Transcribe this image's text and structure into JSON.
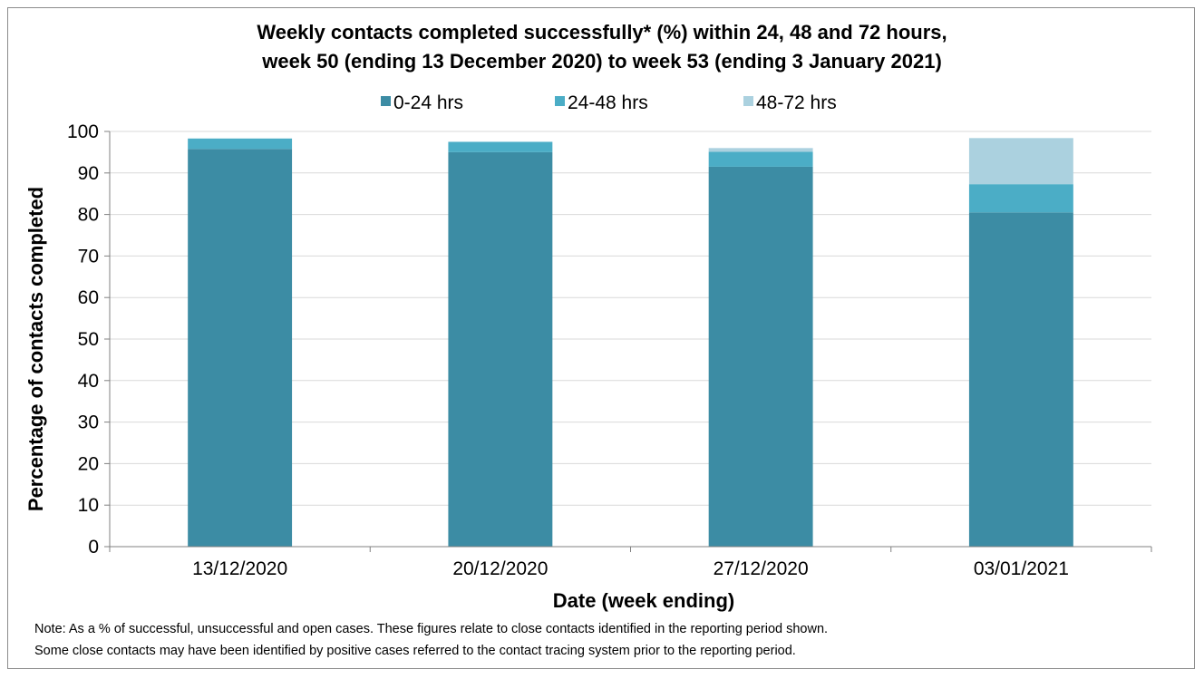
{
  "chart_data": {
    "type": "bar",
    "stacked": true,
    "title": "Weekly contacts completed successfully* (%) within 24, 48 and 72 hours,",
    "subtitle": "week 50 (ending 13 December 2020) to week 53 (ending 3 January 2021)",
    "xlabel": "Date (week ending)",
    "ylabel": "Percentage of contacts completed",
    "ylim": [
      0,
      100
    ],
    "yticks": [
      0,
      10,
      20,
      30,
      40,
      50,
      60,
      70,
      80,
      90,
      100
    ],
    "grid": true,
    "legend_position": "top",
    "categories": [
      "13/12/2020",
      "20/12/2020",
      "27/12/2020",
      "03/01/2021"
    ],
    "series": [
      {
        "name": "0-24 hrs",
        "color": "#3c8ca4",
        "values": [
          95.8,
          95.0,
          91.5,
          80.5
        ]
      },
      {
        "name": "24-48 hrs",
        "color": "#4badc6",
        "values": [
          2.5,
          2.5,
          3.6,
          6.8
        ]
      },
      {
        "name": "48-72 hrs",
        "color": "#abd1df",
        "values": [
          0.0,
          0.0,
          0.9,
          11.1
        ]
      }
    ]
  },
  "note": {
    "line1": "Note: As a % of successful, unsuccessful and open cases. These figures relate to close contacts identified in the reporting period shown.",
    "line2": "Some close contacts may have been identified by positive cases referred to the contact tracing system prior to the reporting period."
  }
}
